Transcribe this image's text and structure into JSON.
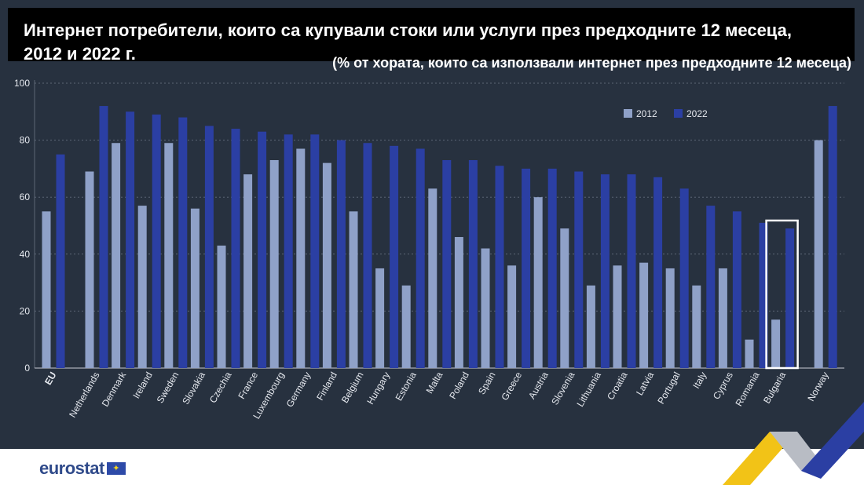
{
  "header": {
    "title_line_1": "Интернет потребители, които са купували стоки или услуги през предходните 12 месеца,",
    "title_line_2": "2012 и 2022 г.",
    "subtitle": "(% от хората, които са използвали интернет през предходните 12 месеца)"
  },
  "footer": {
    "logo_text": "eurostat",
    "flag_icon": "eu-flag-icon"
  },
  "colors": {
    "background": "#27313f",
    "series_2012": "#8fa1c8",
    "series_2022": "#2b3fa3",
    "axis_text": "#e6e9ef",
    "grid": "#5c6676",
    "highlight": "#ffffff"
  },
  "chart_data": {
    "type": "bar",
    "title": "",
    "xlabel": "",
    "ylabel": "",
    "ylim": [
      0,
      100
    ],
    "yticks": [
      0,
      20,
      40,
      60,
      80,
      100
    ],
    "grid": true,
    "legend_position": "top-right",
    "highlighted_category": "Bulgaria",
    "categories": [
      "EU",
      "Netherlands",
      "Denmark",
      "Ireland",
      "Sweden",
      "Slovakia",
      "Czechia",
      "France",
      "Luxembourg",
      "Germany",
      "Finland",
      "Belgium",
      "Hungary",
      "Estonia",
      "Malta",
      "Poland",
      "Spain",
      "Greece",
      "Austria",
      "Slovenia",
      "Lithuania",
      "Croatia",
      "Latvia",
      "Portugal",
      "Italy",
      "Cyprus",
      "Romania",
      "Bulgaria",
      "Norway"
    ],
    "series": [
      {
        "name": "2012",
        "values": [
          55,
          69,
          79,
          57,
          79,
          56,
          43,
          68,
          73,
          77,
          72,
          55,
          35,
          29,
          63,
          46,
          42,
          36,
          60,
          49,
          29,
          36,
          37,
          35,
          29,
          35,
          10,
          17,
          80
        ]
      },
      {
        "name": "2022",
        "values": [
          75,
          92,
          90,
          89,
          88,
          85,
          84,
          83,
          82,
          82,
          80,
          79,
          78,
          77,
          73,
          73,
          71,
          70,
          70,
          69,
          68,
          68,
          67,
          63,
          57,
          55,
          51,
          49,
          92
        ]
      }
    ]
  }
}
